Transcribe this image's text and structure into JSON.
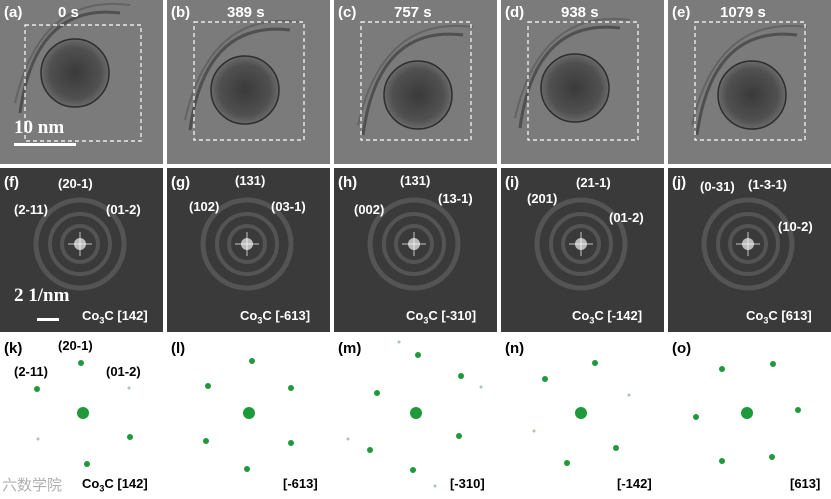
{
  "tem_panels": [
    {
      "label": "(a)",
      "time": "0 s"
    },
    {
      "label": "(b)",
      "time": "389 s"
    },
    {
      "label": "(c)",
      "time": "757 s"
    },
    {
      "label": "(d)",
      "time": "938 s"
    },
    {
      "label": "(e)",
      "time": "1079 s"
    }
  ],
  "tem_scale_bar": "10 nm",
  "fft_panels": [
    {
      "label": "(f)",
      "indices": [
        "(20-1)",
        "(2-11)",
        "(01-2)"
      ],
      "zone_prefix": "Co",
      "zone_sub": "3",
      "zone_suffix": "C [142]"
    },
    {
      "label": "(g)",
      "indices": [
        "(131)",
        "(102)",
        "(03-1)"
      ],
      "zone_prefix": "Co",
      "zone_sub": "3",
      "zone_suffix": "C [-613]"
    },
    {
      "label": "(h)",
      "indices": [
        "(131)",
        "(002)",
        "(13-1)"
      ],
      "zone_prefix": "Co",
      "zone_sub": "3",
      "zone_suffix": "C [-310]"
    },
    {
      "label": "(i)",
      "indices": [
        "(21-1)",
        "(201)",
        "(01-2)"
      ],
      "zone_prefix": "Co",
      "zone_sub": "3",
      "zone_suffix": "C [-142]"
    },
    {
      "label": "(j)",
      "indices": [
        "(0-31)",
        "(1-3-1)",
        "(10-2)"
      ],
      "zone_prefix": "Co",
      "zone_sub": "3",
      "zone_suffix": "C [613]"
    }
  ],
  "fft_scale_bar": "2 1/nm",
  "sim_panels": [
    {
      "label": "(k)",
      "indices": [
        "(20-1)",
        "(2-11)",
        "(01-2)"
      ],
      "zone": "Co3C [142]",
      "zone_prefix": "Co",
      "zone_sub": "3",
      "zone_suffix": "C [142]"
    },
    {
      "label": "(l)",
      "zone": "[-613]"
    },
    {
      "label": "(m)",
      "zone": "[-310]"
    },
    {
      "label": "(n)",
      "zone": "[-142]"
    },
    {
      "label": "(o)",
      "zone": "[613]"
    }
  ],
  "watermark": "六数学院",
  "colors": {
    "spot": "#1f9a3a",
    "tem_bg": "#7b7b7b",
    "fft_bg": "#3a3a3a"
  }
}
